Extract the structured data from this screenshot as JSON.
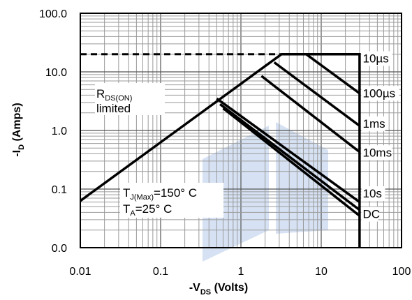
{
  "chart_data": {
    "type": "line",
    "title": "",
    "xlabel": "-V",
    "xlabel_sub": "DS",
    "xlabel_suffix": " (Volts)",
    "ylabel": "-I",
    "ylabel_sub": "D",
    "ylabel_suffix": " (Amps)",
    "x_scale": "log",
    "y_scale": "log",
    "xlim": [
      0.01,
      100
    ],
    "ylim": [
      0.01,
      100
    ],
    "x_ticks": [
      {
        "value": 0.01,
        "label": "0.01"
      },
      {
        "value": 0.1,
        "label": "0.1"
      },
      {
        "value": 1,
        "label": "1"
      },
      {
        "value": 10,
        "label": "10"
      },
      {
        "value": 100,
        "label": "100"
      }
    ],
    "y_ticks": [
      {
        "value": 0.01,
        "label": "0.0"
      },
      {
        "value": 0.1,
        "label": "0.1"
      },
      {
        "value": 1,
        "label": "1.0"
      },
      {
        "value": 10,
        "label": "10.0"
      },
      {
        "value": 100,
        "label": "100.0"
      }
    ],
    "grid": true,
    "limits": {
      "current_limit": 20,
      "voltage_limit": 30
    },
    "series": [
      {
        "name": "10µs",
        "points": [
          [
            0.01,
            0.063
          ],
          [
            3.2,
            20
          ],
          [
            6.5,
            20
          ],
          [
            30,
            4.3
          ]
        ]
      },
      {
        "name": "100µs",
        "points": [
          [
            2.6,
            14.5
          ],
          [
            30,
            1.2
          ]
        ]
      },
      {
        "name": "1ms",
        "points": [
          [
            1.8,
            8.5
          ],
          [
            30,
            0.43
          ]
        ]
      },
      {
        "name": "10ms",
        "points": [
          [
            0.5,
            3.5
          ],
          [
            30,
            0.06
          ]
        ]
      },
      {
        "name": "10s",
        "points": [
          [
            0.55,
            2.8
          ],
          [
            30,
            0.044
          ]
        ]
      },
      {
        "name": "DC",
        "points": [
          [
            0.6,
            2.4
          ],
          [
            30,
            0.035
          ]
        ]
      }
    ],
    "current_limit_line": {
      "style": "dashed",
      "points": [
        [
          0.01,
          20
        ],
        [
          3.2,
          20
        ]
      ]
    },
    "boundary_line": {
      "points": [
        [
          3.2,
          20
        ],
        [
          30,
          20
        ],
        [
          30,
          0.01
        ]
      ]
    },
    "labels": [
      {
        "text": "10µs",
        "x": 31,
        "y": 14.5
      },
      {
        "text": "100µs",
        "x": 31,
        "y": 3.7
      },
      {
        "text": "1ms",
        "x": 31,
        "y": 1.12
      },
      {
        "text": "10ms",
        "x": 31,
        "y": 0.36
      },
      {
        "text": "10s",
        "x": 31,
        "y": 0.072
      },
      {
        "text": "DC",
        "x": 31,
        "y": 0.032
      }
    ],
    "annotations": {
      "rds_main": "R",
      "rds_sub": "DS(ON)",
      "rds_line2": "limited",
      "tj_main": "T",
      "tj_sub": "J(Max)",
      "tj_value": "=150° C",
      "ta_main": "T",
      "ta_sub": "A",
      "ta_value": "=25° C"
    },
    "colors": {
      "line": "#000000",
      "grid": "#9a9a9a",
      "watermark": "#d6e2f3"
    }
  }
}
